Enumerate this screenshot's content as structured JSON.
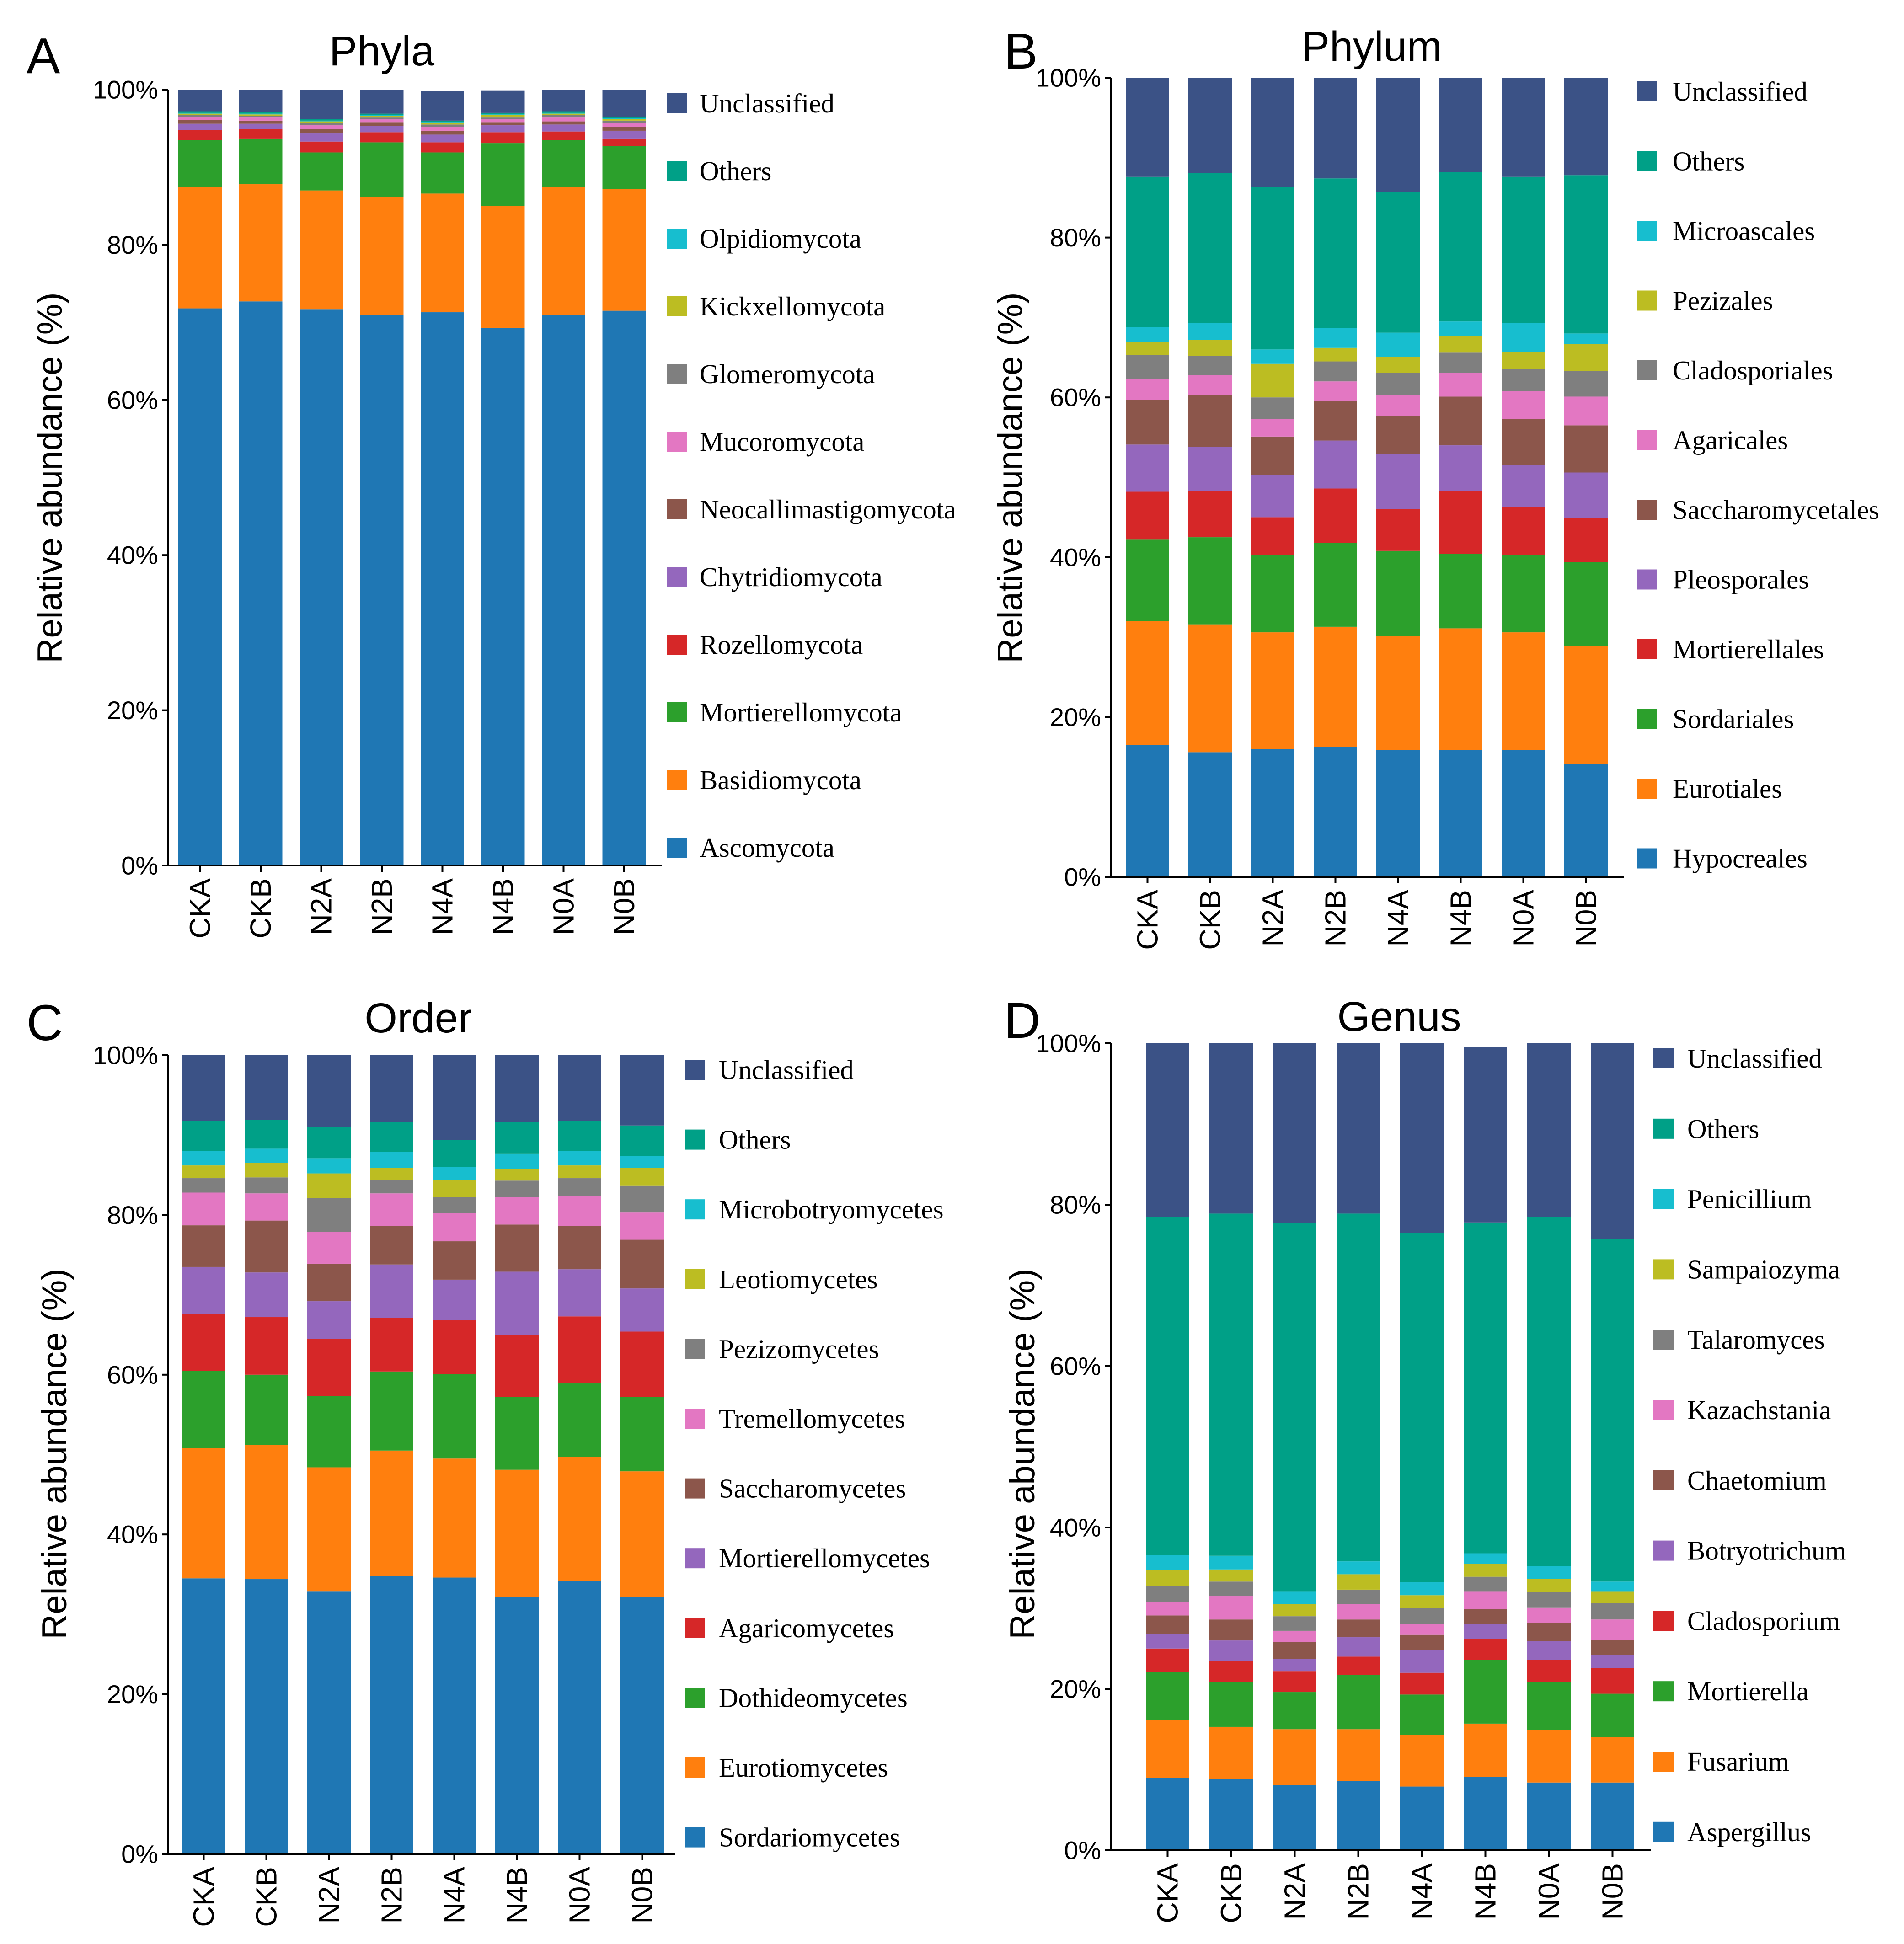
{
  "colors": {
    "Unclassified": "#3b5286",
    "Others": "#00a087",
    "cyan": "#17becf",
    "olive": "#bcbd22",
    "gray": "#7f7f7f",
    "pink": "#e377c2",
    "brown": "#8c564b",
    "purple": "#9467bd",
    "red": "#d62728",
    "green": "#2ca02c",
    "orange": "#ff7f0e",
    "blue": "#1f77b4"
  },
  "y_ticks": [
    "0%",
    "20%",
    "40%",
    "60%",
    "80%",
    "100%"
  ],
  "chart_data": [
    {
      "panel": "A",
      "type": "bar",
      "stacked": true,
      "title": "Phyla",
      "xlabel": "",
      "ylabel": "Relative abundance (%)",
      "ylim": [
        0,
        100
      ],
      "legend_position": "right",
      "categories": [
        "CKA",
        "CKB",
        "N2A",
        "N2B",
        "N4A",
        "N4B",
        "N0A",
        "N0B"
      ],
      "series": [
        {
          "name": "Ascomycota",
          "color": "blue",
          "values": [
            71.8,
            72.7,
            71.7,
            70.9,
            71.3,
            69.3,
            70.9,
            71.5
          ]
        },
        {
          "name": "Basidiomycota",
          "color": "orange",
          "values": [
            15.6,
            15.1,
            15.3,
            15.3,
            15.3,
            15.7,
            16.5,
            15.7
          ]
        },
        {
          "name": "Mortierellomycota",
          "color": "green",
          "values": [
            6.1,
            5.9,
            4.9,
            7.0,
            5.3,
            8.1,
            6.1,
            5.5
          ]
        },
        {
          "name": "Rozellomycota",
          "color": "red",
          "values": [
            1.3,
            1.2,
            1.4,
            1.3,
            1.3,
            1.4,
            1.1,
            1.0
          ]
        },
        {
          "name": "Chytridiomycota",
          "color": "purple",
          "values": [
            0.8,
            0.7,
            1.1,
            0.8,
            1.0,
            0.9,
            0.9,
            1.0
          ]
        },
        {
          "name": "Neocallimastigomycota",
          "color": "brown",
          "values": [
            0.5,
            0.4,
            0.5,
            0.5,
            0.5,
            0.4,
            0.4,
            0.5
          ]
        },
        {
          "name": "Mucoromycota",
          "color": "pink",
          "values": [
            0.4,
            0.4,
            0.5,
            0.4,
            0.5,
            0.4,
            0.5,
            0.5
          ]
        },
        {
          "name": "Glomeromycota",
          "color": "gray",
          "values": [
            0.2,
            0.2,
            0.3,
            0.2,
            0.3,
            0.2,
            0.3,
            0.3
          ]
        },
        {
          "name": "Kickxellomycota",
          "color": "olive",
          "values": [
            0.2,
            0.2,
            0.2,
            0.2,
            0.2,
            0.3,
            0.2,
            0.2
          ]
        },
        {
          "name": "Olpidiomycota",
          "color": "cyan",
          "values": [
            0.1,
            0.1,
            0.1,
            0.1,
            0.1,
            0.1,
            0.1,
            0.1
          ]
        },
        {
          "name": "Others",
          "color": "Others",
          "values": [
            0.2,
            0.2,
            0.2,
            0.2,
            0.2,
            0.2,
            0.2,
            0.2
          ]
        },
        {
          "name": "Unclassified",
          "color": "Unclassified",
          "values": [
            2.8,
            2.9,
            3.8,
            3.1,
            3.8,
            2.9,
            2.8,
            3.5
          ]
        }
      ]
    },
    {
      "panel": "B",
      "type": "bar",
      "stacked": true,
      "title": "Phylum",
      "xlabel": "",
      "ylabel": "Relative abundance (%)",
      "ylim": [
        0,
        100
      ],
      "legend_position": "right",
      "categories": [
        "CKA",
        "CKB",
        "N2A",
        "N2B",
        "N4A",
        "N4B",
        "N0A",
        "N0B"
      ],
      "series": [
        {
          "name": "Hypocreales",
          "color": "blue",
          "values": [
            16.5,
            15.6,
            16.0,
            16.3,
            15.9,
            15.9,
            15.9,
            14.1
          ]
        },
        {
          "name": "Eurotiales",
          "color": "orange",
          "values": [
            15.5,
            16.0,
            14.6,
            15.0,
            14.3,
            15.2,
            14.7,
            14.8
          ]
        },
        {
          "name": "Sordariales",
          "color": "green",
          "values": [
            10.2,
            10.9,
            9.7,
            10.5,
            10.6,
            9.3,
            9.7,
            10.5
          ]
        },
        {
          "name": "Mortierellales",
          "color": "red",
          "values": [
            6.0,
            5.8,
            4.7,
            6.8,
            5.2,
            7.9,
            6.0,
            5.5
          ]
        },
        {
          "name": "Pleosporales",
          "color": "purple",
          "values": [
            5.9,
            5.5,
            5.3,
            6.0,
            6.9,
            5.7,
            5.3,
            5.7
          ]
        },
        {
          "name": "Saccharomycetales",
          "color": "brown",
          "values": [
            5.6,
            6.5,
            4.8,
            4.9,
            4.8,
            6.1,
            5.7,
            5.9
          ]
        },
        {
          "name": "Agaricales",
          "color": "pink",
          "values": [
            2.6,
            2.5,
            2.2,
            2.5,
            2.6,
            3.0,
            3.5,
            3.6
          ]
        },
        {
          "name": "Cladosporiales",
          "color": "gray",
          "values": [
            3.0,
            2.4,
            2.7,
            2.5,
            2.8,
            2.5,
            2.8,
            3.2
          ]
        },
        {
          "name": "Pezizales",
          "color": "olive",
          "values": [
            1.6,
            2.0,
            4.2,
            1.7,
            2.0,
            2.1,
            2.1,
            3.4
          ]
        },
        {
          "name": "Microascales",
          "color": "cyan",
          "values": [
            1.9,
            2.1,
            1.8,
            2.5,
            3.0,
            1.8,
            3.6,
            1.3
          ]
        },
        {
          "name": "Others",
          "color": "Others",
          "values": [
            18.8,
            18.8,
            20.3,
            18.7,
            17.6,
            18.7,
            18.3,
            19.8
          ]
        },
        {
          "name": "Unclassified",
          "color": "Unclassified",
          "values": [
            12.4,
            11.9,
            13.7,
            12.6,
            14.3,
            11.8,
            12.4,
            12.2
          ]
        }
      ]
    },
    {
      "panel": "C",
      "type": "bar",
      "stacked": true,
      "title": "Order",
      "xlabel": "",
      "ylabel": "Relative abundance (%)",
      "ylim": [
        0,
        100
      ],
      "legend_position": "right",
      "categories": [
        "CKA",
        "CKB",
        "N2A",
        "N2B",
        "N4A",
        "N4B",
        "N0A",
        "N0B"
      ],
      "series": [
        {
          "name": "Sordariomycetes",
          "color": "blue",
          "values": [
            34.5,
            34.4,
            32.9,
            34.8,
            34.6,
            32.2,
            34.2,
            32.2
          ]
        },
        {
          "name": "Eurotiomycetes",
          "color": "orange",
          "values": [
            16.3,
            16.8,
            15.5,
            15.7,
            14.9,
            15.9,
            15.5,
            15.7
          ]
        },
        {
          "name": "Dothideomycetes",
          "color": "green",
          "values": [
            9.7,
            8.8,
            8.9,
            9.9,
            10.6,
            9.1,
            9.2,
            9.3
          ]
        },
        {
          "name": "Agaricomycetes",
          "color": "red",
          "values": [
            7.1,
            7.2,
            7.2,
            6.7,
            6.7,
            7.8,
            8.4,
            8.2
          ]
        },
        {
          "name": "Mortierellomycetes",
          "color": "purple",
          "values": [
            5.9,
            5.6,
            4.7,
            6.7,
            5.1,
            7.9,
            5.9,
            5.4
          ]
        },
        {
          "name": "Saccharomycetes",
          "color": "brown",
          "values": [
            5.2,
            6.5,
            4.7,
            4.8,
            4.8,
            5.9,
            5.4,
            6.1
          ]
        },
        {
          "name": "Tremellomycetes",
          "color": "pink",
          "values": [
            4.1,
            3.4,
            4.0,
            4.1,
            3.5,
            3.4,
            3.8,
            3.4
          ]
        },
        {
          "name": "Pezizomycetes",
          "color": "gray",
          "values": [
            1.8,
            2.0,
            4.2,
            1.7,
            2.0,
            2.1,
            2.2,
            3.4
          ]
        },
        {
          "name": "Leotiomycetes",
          "color": "olive",
          "values": [
            1.6,
            1.8,
            3.1,
            1.5,
            2.2,
            1.5,
            1.6,
            2.2
          ]
        },
        {
          "name": "Microbotryomycetes",
          "color": "cyan",
          "values": [
            1.8,
            1.8,
            1.9,
            2.0,
            1.6,
            1.9,
            1.8,
            1.5
          ]
        },
        {
          "name": "Others",
          "color": "Others",
          "values": [
            3.8,
            3.6,
            3.9,
            3.8,
            3.4,
            4.0,
            3.8,
            3.8
          ]
        },
        {
          "name": "Unclassified",
          "color": "Unclassified",
          "values": [
            8.2,
            8.1,
            9.0,
            8.3,
            10.6,
            8.3,
            8.2,
            8.8
          ]
        }
      ]
    },
    {
      "panel": "D",
      "type": "bar",
      "stacked": true,
      "title": "Genus",
      "xlabel": "",
      "ylabel": "Relative abundance (%)",
      "ylim": [
        0,
        100
      ],
      "legend_position": "right",
      "categories": [
        "CKA",
        "CKB",
        "N2A",
        "N2B",
        "N4A",
        "N4B",
        "N0A",
        "N0B"
      ],
      "series": [
        {
          "name": "Aspergillus",
          "color": "blue",
          "values": [
            8.9,
            8.8,
            8.1,
            8.6,
            7.9,
            9.1,
            8.4,
            8.4
          ]
        },
        {
          "name": "Fusarium",
          "color": "orange",
          "values": [
            7.3,
            6.5,
            6.9,
            6.4,
            6.4,
            6.6,
            6.5,
            5.6
          ]
        },
        {
          "name": "Mortierella",
          "color": "green",
          "values": [
            5.9,
            5.6,
            4.6,
            6.7,
            5.0,
            7.9,
            5.9,
            5.4
          ]
        },
        {
          "name": "Cladosporium",
          "color": "red",
          "values": [
            2.9,
            2.6,
            2.6,
            2.3,
            2.7,
            2.6,
            2.8,
            3.2
          ]
        },
        {
          "name": "Botryotrichum",
          "color": "purple",
          "values": [
            1.8,
            2.5,
            1.5,
            2.4,
            2.8,
            1.8,
            2.3,
            1.6
          ]
        },
        {
          "name": "Chaetomium",
          "color": "brown",
          "values": [
            2.3,
            2.6,
            2.1,
            2.2,
            1.9,
            1.9,
            2.3,
            1.9
          ]
        },
        {
          "name": "Kazachstania",
          "color": "pink",
          "values": [
            1.7,
            2.9,
            1.4,
            1.9,
            1.4,
            2.2,
            1.9,
            2.5
          ]
        },
        {
          "name": "Talaromyces",
          "color": "gray",
          "values": [
            2.0,
            1.8,
            1.8,
            1.8,
            1.9,
            1.8,
            1.9,
            2.0
          ]
        },
        {
          "name": "Sampaiozyma",
          "color": "olive",
          "values": [
            1.9,
            1.5,
            1.5,
            1.9,
            1.6,
            1.6,
            1.6,
            1.5
          ]
        },
        {
          "name": "Penicillium",
          "color": "cyan",
          "values": [
            1.9,
            1.7,
            1.6,
            1.6,
            1.6,
            1.3,
            1.6,
            1.2
          ]
        },
        {
          "name": "Others",
          "color": "Others",
          "values": [
            41.9,
            42.4,
            45.6,
            43.1,
            43.3,
            41.0,
            43.3,
            42.4
          ]
        },
        {
          "name": "Unclassified",
          "color": "Unclassified",
          "values": [
            21.5,
            21.1,
            22.3,
            21.1,
            23.5,
            21.8,
            21.5,
            24.3
          ]
        }
      ]
    }
  ],
  "panel_letters": [
    "A",
    "B",
    "C",
    "D"
  ]
}
